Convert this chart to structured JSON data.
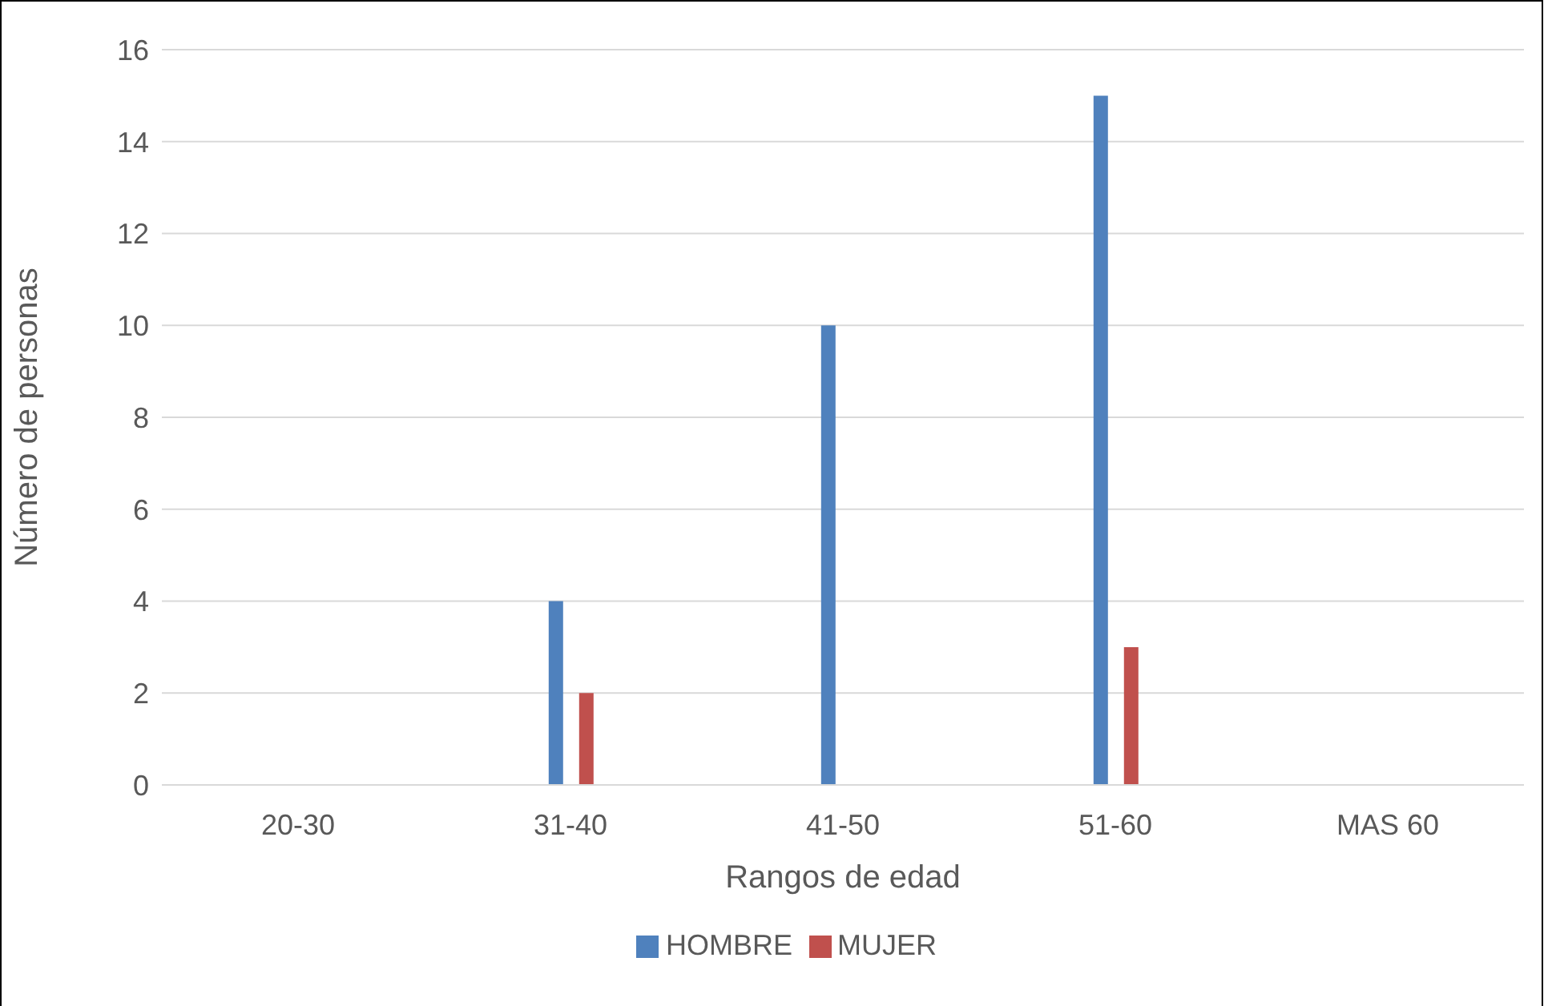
{
  "chart_data": {
    "type": "bar",
    "categories": [
      "20-30",
      "31-40",
      "41-50",
      "51-60",
      "MAS 60"
    ],
    "series": [
      {
        "name": "HOMBRE",
        "color": "#4f81bd",
        "values": [
          0,
          4,
          10,
          15,
          0
        ]
      },
      {
        "name": "MUJER",
        "color": "#c0504d",
        "values": [
          0,
          2,
          0,
          3,
          0
        ]
      }
    ],
    "xlabel": "Rangos de edad",
    "ylabel": "Número de personas",
    "ylim": [
      0,
      16
    ],
    "yticks": [
      0,
      2,
      4,
      6,
      8,
      10,
      12,
      14,
      16
    ],
    "grid": "y",
    "legend": "bottom"
  }
}
